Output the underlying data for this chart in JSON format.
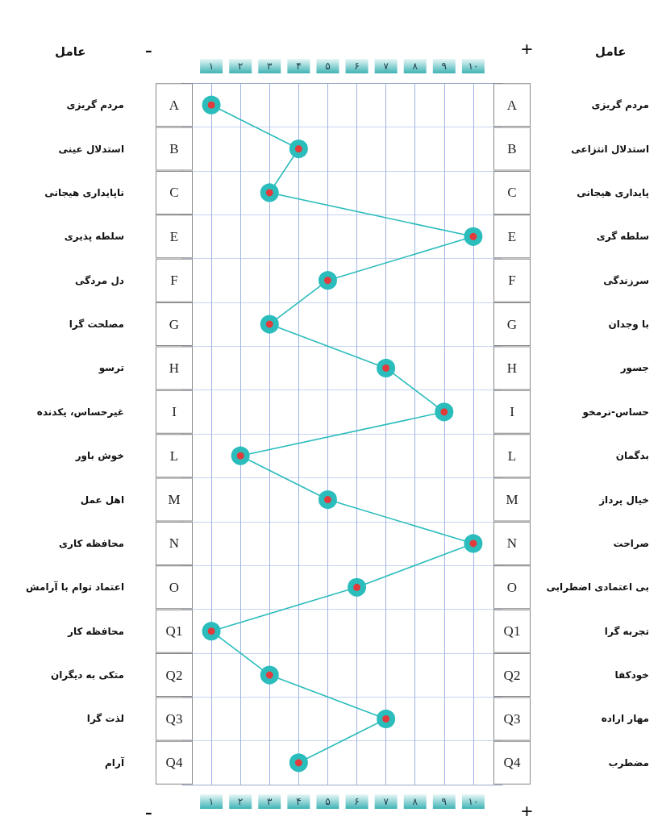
{
  "chart_data": {
    "type": "line",
    "orientation": "horizontal",
    "categories": [
      "A",
      "B",
      "C",
      "E",
      "F",
      "G",
      "H",
      "I",
      "L",
      "M",
      "N",
      "O",
      "Q1",
      "Q2",
      "Q3",
      "Q4"
    ],
    "y_categories": [
      "مردم گریزی",
      "استدلال عینی",
      "ناپایداری هیجانی",
      "سلطه پذیری",
      "دل مردگی",
      "مصلحت گرا",
      "ترسو",
      "غیرحساس، یکدنده",
      "خوش باور",
      "اهل عمل",
      "محافظه کاری",
      "اعتماد توام با آرامش",
      "محافظه کار",
      "متکی به دیگران",
      "لذت گرا",
      "آرام"
    ],
    "y2_categories": [
      "مردم گریزی",
      "استدلال انتزاعی",
      "پایداری هیجانی",
      "سلطه گری",
      "سرزندگی",
      "با وجدان",
      "جسور",
      "حساس-نرمخو",
      "بدگمان",
      "خیال پرداز",
      "صراحت",
      "بی اعتمادی اضطرابی",
      "تجربه گرا",
      "خودکفا",
      "مهار اراده",
      "مضطرب"
    ],
    "series": [
      {
        "color": "#2bbcbc",
        "values": [
          1,
          4,
          3,
          10,
          5,
          3,
          7,
          9,
          2,
          5,
          10,
          6,
          1,
          3,
          7,
          4
        ]
      }
    ],
    "xlim": [
      0,
      11
    ],
    "xticks": [
      {
        "value": 1,
        "label": "۱"
      },
      {
        "value": 2,
        "label": "۲"
      },
      {
        "value": 3,
        "label": "۳"
      },
      {
        "value": 4,
        "label": "۴"
      },
      {
        "value": 5,
        "label": "۵"
      },
      {
        "value": 6,
        "label": "۶"
      },
      {
        "value": 7,
        "label": "۷"
      },
      {
        "value": 8,
        "label": "۸"
      },
      {
        "value": 9,
        "label": "۹"
      },
      {
        "value": 10,
        "label": "۱۰"
      }
    ],
    "x2lim": [
      0,
      11
    ],
    "x2ticks": [
      {
        "value": 1,
        "label": "۱"
      },
      {
        "value": 2,
        "label": "۲"
      },
      {
        "value": 3,
        "label": "۳"
      },
      {
        "value": 4,
        "label": "۴"
      },
      {
        "value": 5,
        "label": "۵"
      },
      {
        "value": 6,
        "label": "۶"
      },
      {
        "value": 7,
        "label": "۷"
      },
      {
        "value": 8,
        "label": "۸"
      },
      {
        "value": 9,
        "label": "۹"
      },
      {
        "value": 10,
        "label": "۱۰"
      }
    ],
    "annotations": [
      "عامل",
      "-",
      "+",
      "عامل",
      "-",
      "+"
    ],
    "grid": true,
    "marker": "circle",
    "line_style": "solid"
  }
}
